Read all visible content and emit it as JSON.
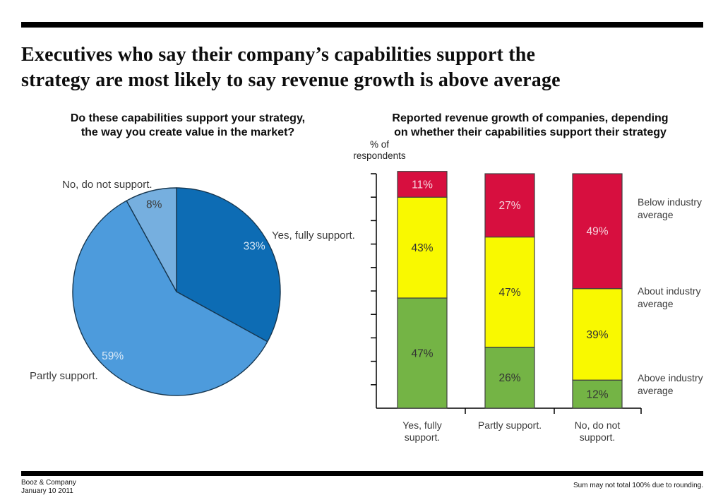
{
  "slide": {
    "title_lines": [
      "Executives who say their company’s capabilities support the",
      "strategy are most likely to say revenue growth is above average"
    ],
    "footer": {
      "company": "Booz & Company",
      "date": "January 10 2011",
      "note": "Sum may not total 100% due to rounding."
    },
    "accent_color": "#000000"
  },
  "chart_data": [
    {
      "type": "pie",
      "title_lines": [
        "Do these capabilities support your strategy,",
        "the way you create value in the market?"
      ],
      "labels": [
        "Yes, fully support.",
        "Partly support.",
        "No, do not support."
      ],
      "values": [
        33,
        59,
        8
      ],
      "unit": "%",
      "colors": [
        "#0d6cb4",
        "#4d9bdc",
        "#76afdf"
      ],
      "slice_outline_color": "#16364f",
      "value_label_colors": [
        "#d9e9f7",
        "#d9e9f7",
        "#3a3a3a"
      ],
      "start_angle_deg": 0,
      "direction": "clockwise"
    },
    {
      "type": "bar",
      "stacked": true,
      "title_lines": [
        "Reported revenue growth of companies, depending",
        "on whether their capabilities support their strategy"
      ],
      "ylabel": "% of\nrespondents",
      "categories": [
        "Yes, fully\nsupport.",
        "Partly support.",
        "No, do not\nsupport."
      ],
      "series": [
        {
          "name": "Above industry average",
          "values": [
            47,
            26,
            12
          ],
          "color": "#74b445",
          "label_color": "#333333"
        },
        {
          "name": "About industry average",
          "values": [
            43,
            47,
            39
          ],
          "color": "#f9f900",
          "label_color": "#333333"
        },
        {
          "name": "Below industry average",
          "values": [
            11,
            27,
            49
          ],
          "color": "#d70f3f",
          "label_color": "#f6d5de"
        }
      ],
      "unit": "%",
      "ylim": [
        0,
        100
      ],
      "ytick_interval": 10,
      "grid": false,
      "bar_outline_color": "#404040",
      "axis_color": "#000000",
      "legend_position": "right"
    }
  ]
}
